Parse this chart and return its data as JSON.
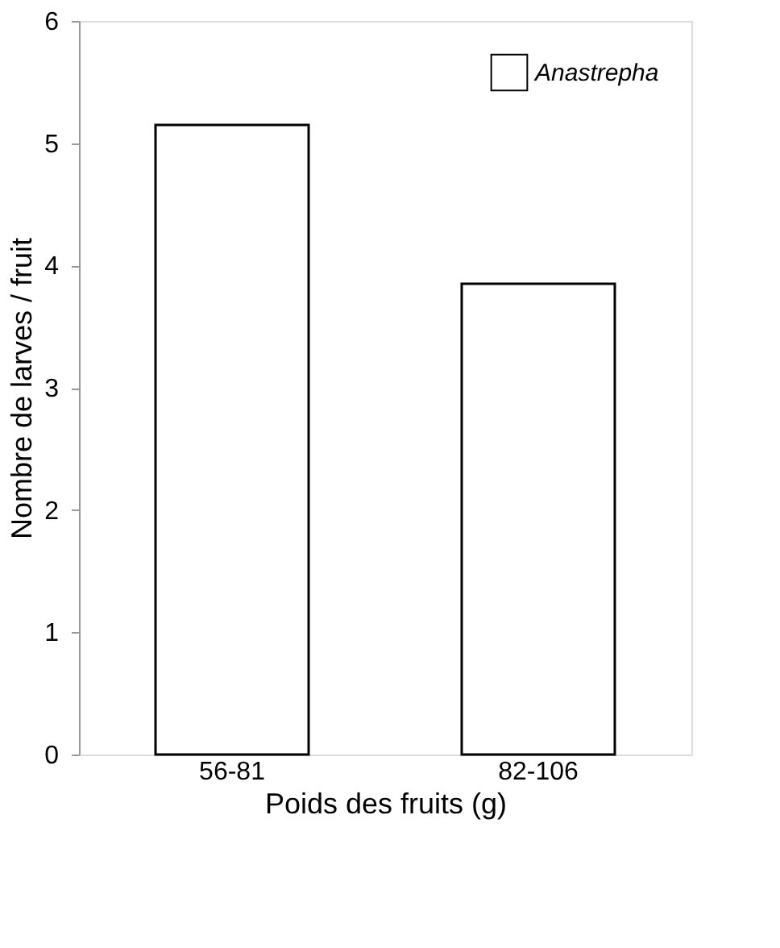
{
  "chart_data": {
    "type": "bar",
    "xlabel": "Poids des fruits (g)",
    "ylabel": "Nombre de larves / fruit",
    "categories": [
      "56-81",
      "82-106"
    ],
    "series": [
      {
        "name": "Anastrepha",
        "color": "#ffffff",
        "values": [
          5.15,
          3.85
        ]
      }
    ],
    "ylim": [
      0,
      6
    ],
    "yticks": [
      0,
      1,
      2,
      3,
      4,
      5,
      6
    ],
    "grid": false,
    "legend": "top right"
  }
}
